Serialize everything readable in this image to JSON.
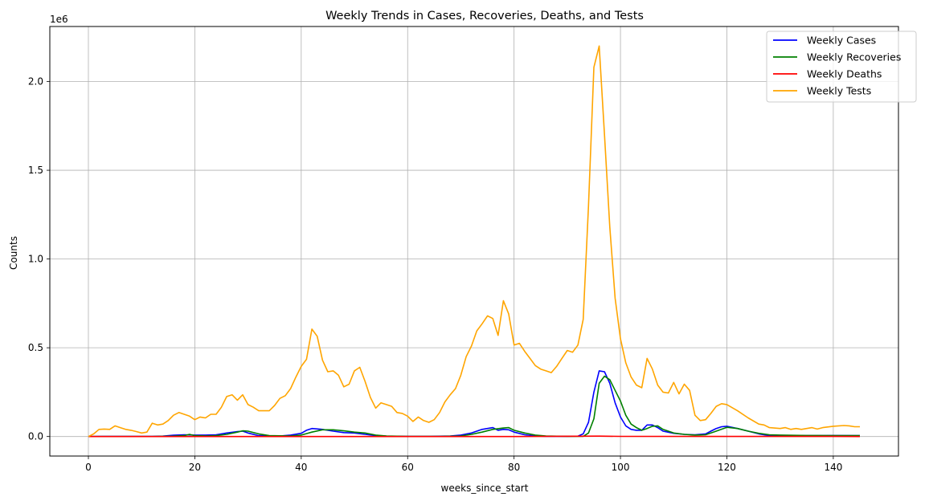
{
  "chart_data": {
    "type": "line",
    "title": "Weekly Trends in Cases, Recoveries, Deaths, and Tests",
    "xlabel": "weeks_since_start",
    "ylabel": "Counts",
    "y_scale_label": "1e6",
    "xlim": [
      -7.25,
      152.25
    ],
    "ylim": [
      -110000,
      2310000
    ],
    "x_ticks": [
      0,
      20,
      40,
      60,
      80,
      100,
      120,
      140
    ],
    "x_tick_labels": [
      "0",
      "20",
      "40",
      "60",
      "80",
      "100",
      "120",
      "140"
    ],
    "y_ticks": [
      0,
      500000,
      1000000,
      1500000,
      2000000
    ],
    "y_tick_labels": [
      "0.0",
      "0.5",
      "1.0",
      "1.5",
      "2.0"
    ],
    "grid": true,
    "legend_position": "top-right",
    "series": [
      {
        "name": "Weekly Cases",
        "color": "#0000ff",
        "points": [
          [
            0,
            0
          ],
          [
            4,
            1000
          ],
          [
            8,
            1000
          ],
          [
            12,
            1000
          ],
          [
            14,
            2000
          ],
          [
            16,
            7000
          ],
          [
            18,
            10000
          ],
          [
            20,
            8000
          ],
          [
            22,
            8000
          ],
          [
            24,
            10000
          ],
          [
            26,
            20000
          ],
          [
            28,
            28000
          ],
          [
            29,
            30000
          ],
          [
            30,
            20000
          ],
          [
            32,
            5000
          ],
          [
            34,
            3000
          ],
          [
            36,
            3000
          ],
          [
            38,
            8000
          ],
          [
            40,
            18000
          ],
          [
            41,
            35000
          ],
          [
            42,
            45000
          ],
          [
            44,
            40000
          ],
          [
            46,
            30000
          ],
          [
            48,
            22000
          ],
          [
            50,
            20000
          ],
          [
            52,
            12000
          ],
          [
            54,
            5000
          ],
          [
            56,
            2000
          ],
          [
            60,
            1000
          ],
          [
            64,
            1000
          ],
          [
            68,
            3000
          ],
          [
            70,
            8000
          ],
          [
            72,
            20000
          ],
          [
            74,
            40000
          ],
          [
            76,
            50000
          ],
          [
            77,
            35000
          ],
          [
            78,
            40000
          ],
          [
            79,
            38000
          ],
          [
            80,
            25000
          ],
          [
            82,
            10000
          ],
          [
            84,
            3000
          ],
          [
            86,
            1000
          ],
          [
            90,
            1000
          ],
          [
            92,
            2000
          ],
          [
            93,
            15000
          ],
          [
            94,
            80000
          ],
          [
            95,
            250000
          ],
          [
            96,
            370000
          ],
          [
            97,
            365000
          ],
          [
            98,
            300000
          ],
          [
            99,
            190000
          ],
          [
            100,
            110000
          ],
          [
            101,
            60000
          ],
          [
            102,
            40000
          ],
          [
            103,
            35000
          ],
          [
            104,
            35000
          ],
          [
            105,
            65000
          ],
          [
            106,
            65000
          ],
          [
            107,
            50000
          ],
          [
            108,
            30000
          ],
          [
            110,
            18000
          ],
          [
            112,
            12000
          ],
          [
            114,
            10000
          ],
          [
            116,
            15000
          ],
          [
            117,
            30000
          ],
          [
            118,
            45000
          ],
          [
            119,
            55000
          ],
          [
            120,
            58000
          ],
          [
            122,
            45000
          ],
          [
            124,
            30000
          ],
          [
            126,
            15000
          ],
          [
            128,
            5000
          ],
          [
            130,
            5000
          ],
          [
            135,
            5000
          ],
          [
            140,
            6000
          ],
          [
            145,
            5000
          ]
        ]
      },
      {
        "name": "Weekly Recoveries",
        "color": "#008000",
        "points": [
          [
            0,
            0
          ],
          [
            4,
            0
          ],
          [
            8,
            0
          ],
          [
            12,
            0
          ],
          [
            16,
            2000
          ],
          [
            18,
            5000
          ],
          [
            19,
            12000
          ],
          [
            20,
            5000
          ],
          [
            22,
            3000
          ],
          [
            24,
            5000
          ],
          [
            26,
            12000
          ],
          [
            28,
            25000
          ],
          [
            29,
            32000
          ],
          [
            30,
            30000
          ],
          [
            32,
            15000
          ],
          [
            34,
            5000
          ],
          [
            38,
            3000
          ],
          [
            40,
            8000
          ],
          [
            42,
            25000
          ],
          [
            44,
            38000
          ],
          [
            46,
            38000
          ],
          [
            48,
            32000
          ],
          [
            50,
            25000
          ],
          [
            52,
            20000
          ],
          [
            54,
            8000
          ],
          [
            56,
            3000
          ],
          [
            60,
            1000
          ],
          [
            66,
            1000
          ],
          [
            70,
            3000
          ],
          [
            72,
            12000
          ],
          [
            74,
            25000
          ],
          [
            76,
            40000
          ],
          [
            78,
            48000
          ],
          [
            79,
            50000
          ],
          [
            80,
            35000
          ],
          [
            82,
            20000
          ],
          [
            84,
            8000
          ],
          [
            86,
            3000
          ],
          [
            90,
            1000
          ],
          [
            93,
            1000
          ],
          [
            94,
            20000
          ],
          [
            95,
            100000
          ],
          [
            96,
            300000
          ],
          [
            97,
            340000
          ],
          [
            98,
            320000
          ],
          [
            99,
            260000
          ],
          [
            100,
            200000
          ],
          [
            101,
            120000
          ],
          [
            102,
            70000
          ],
          [
            103,
            50000
          ],
          [
            104,
            35000
          ],
          [
            105,
            45000
          ],
          [
            106,
            58000
          ],
          [
            107,
            60000
          ],
          [
            108,
            40000
          ],
          [
            110,
            20000
          ],
          [
            112,
            12000
          ],
          [
            114,
            8000
          ],
          [
            116,
            10000
          ],
          [
            118,
            30000
          ],
          [
            120,
            52000
          ],
          [
            122,
            45000
          ],
          [
            124,
            30000
          ],
          [
            126,
            18000
          ],
          [
            128,
            10000
          ],
          [
            130,
            8000
          ],
          [
            135,
            6000
          ],
          [
            140,
            5000
          ],
          [
            145,
            5000
          ]
        ]
      },
      {
        "name": "Weekly Deaths",
        "color": "#ff0000",
        "points": [
          [
            0,
            0
          ],
          [
            20,
            0
          ],
          [
            40,
            0
          ],
          [
            60,
            0
          ],
          [
            80,
            0
          ],
          [
            96,
            2000
          ],
          [
            100,
            1000
          ],
          [
            120,
            500
          ],
          [
            140,
            200
          ],
          [
            145,
            100
          ]
        ]
      },
      {
        "name": "Weekly Tests",
        "color": "#ffa500",
        "points": [
          [
            0,
            0
          ],
          [
            1,
            15000
          ],
          [
            2,
            40000
          ],
          [
            3,
            42000
          ],
          [
            4,
            40000
          ],
          [
            5,
            60000
          ],
          [
            6,
            50000
          ],
          [
            7,
            40000
          ],
          [
            8,
            35000
          ],
          [
            9,
            28000
          ],
          [
            10,
            20000
          ],
          [
            11,
            25000
          ],
          [
            12,
            75000
          ],
          [
            13,
            65000
          ],
          [
            14,
            70000
          ],
          [
            15,
            90000
          ],
          [
            16,
            120000
          ],
          [
            17,
            135000
          ],
          [
            18,
            125000
          ],
          [
            19,
            115000
          ],
          [
            20,
            95000
          ],
          [
            21,
            110000
          ],
          [
            22,
            105000
          ],
          [
            23,
            125000
          ],
          [
            24,
            125000
          ],
          [
            25,
            165000
          ],
          [
            26,
            225000
          ],
          [
            27,
            235000
          ],
          [
            28,
            205000
          ],
          [
            29,
            235000
          ],
          [
            30,
            180000
          ],
          [
            31,
            165000
          ],
          [
            32,
            145000
          ],
          [
            33,
            145000
          ],
          [
            34,
            145000
          ],
          [
            35,
            175000
          ],
          [
            36,
            215000
          ],
          [
            37,
            230000
          ],
          [
            38,
            270000
          ],
          [
            39,
            335000
          ],
          [
            40,
            395000
          ],
          [
            41,
            435000
          ],
          [
            42,
            605000
          ],
          [
            43,
            565000
          ],
          [
            44,
            430000
          ],
          [
            45,
            365000
          ],
          [
            46,
            370000
          ],
          [
            47,
            345000
          ],
          [
            48,
            280000
          ],
          [
            49,
            295000
          ],
          [
            50,
            370000
          ],
          [
            51,
            390000
          ],
          [
            52,
            310000
          ],
          [
            53,
            220000
          ],
          [
            54,
            160000
          ],
          [
            55,
            190000
          ],
          [
            56,
            180000
          ],
          [
            57,
            170000
          ],
          [
            58,
            135000
          ],
          [
            59,
            130000
          ],
          [
            60,
            115000
          ],
          [
            61,
            85000
          ],
          [
            62,
            110000
          ],
          [
            63,
            90000
          ],
          [
            64,
            80000
          ],
          [
            65,
            95000
          ],
          [
            66,
            135000
          ],
          [
            67,
            195000
          ],
          [
            68,
            235000
          ],
          [
            69,
            270000
          ],
          [
            70,
            345000
          ],
          [
            71,
            450000
          ],
          [
            72,
            510000
          ],
          [
            73,
            595000
          ],
          [
            74,
            635000
          ],
          [
            75,
            680000
          ],
          [
            76,
            665000
          ],
          [
            77,
            570000
          ],
          [
            78,
            765000
          ],
          [
            79,
            690000
          ],
          [
            80,
            515000
          ],
          [
            81,
            525000
          ],
          [
            82,
            480000
          ],
          [
            83,
            440000
          ],
          [
            84,
            400000
          ],
          [
            85,
            380000
          ],
          [
            86,
            370000
          ],
          [
            87,
            360000
          ],
          [
            88,
            395000
          ],
          [
            89,
            440000
          ],
          [
            90,
            485000
          ],
          [
            91,
            475000
          ],
          [
            92,
            515000
          ],
          [
            93,
            660000
          ],
          [
            94,
            1300000
          ],
          [
            95,
            2080000
          ],
          [
            96,
            2200000
          ],
          [
            97,
            1700000
          ],
          [
            98,
            1180000
          ],
          [
            99,
            780000
          ],
          [
            100,
            550000
          ],
          [
            101,
            415000
          ],
          [
            102,
            335000
          ],
          [
            103,
            290000
          ],
          [
            104,
            275000
          ],
          [
            105,
            440000
          ],
          [
            106,
            380000
          ],
          [
            107,
            290000
          ],
          [
            108,
            250000
          ],
          [
            109,
            245000
          ],
          [
            110,
            305000
          ],
          [
            111,
            240000
          ],
          [
            112,
            295000
          ],
          [
            113,
            260000
          ],
          [
            114,
            120000
          ],
          [
            115,
            90000
          ],
          [
            116,
            95000
          ],
          [
            117,
            130000
          ],
          [
            118,
            170000
          ],
          [
            119,
            185000
          ],
          [
            120,
            180000
          ],
          [
            122,
            145000
          ],
          [
            124,
            105000
          ],
          [
            126,
            70000
          ],
          [
            127,
            65000
          ],
          [
            128,
            50000
          ],
          [
            130,
            45000
          ],
          [
            131,
            50000
          ],
          [
            132,
            40000
          ],
          [
            133,
            45000
          ],
          [
            134,
            40000
          ],
          [
            135,
            45000
          ],
          [
            136,
            50000
          ],
          [
            137,
            42000
          ],
          [
            138,
            50000
          ],
          [
            140,
            58000
          ],
          [
            142,
            62000
          ],
          [
            143,
            60000
          ],
          [
            144,
            55000
          ],
          [
            145,
            55000
          ]
        ]
      }
    ]
  }
}
